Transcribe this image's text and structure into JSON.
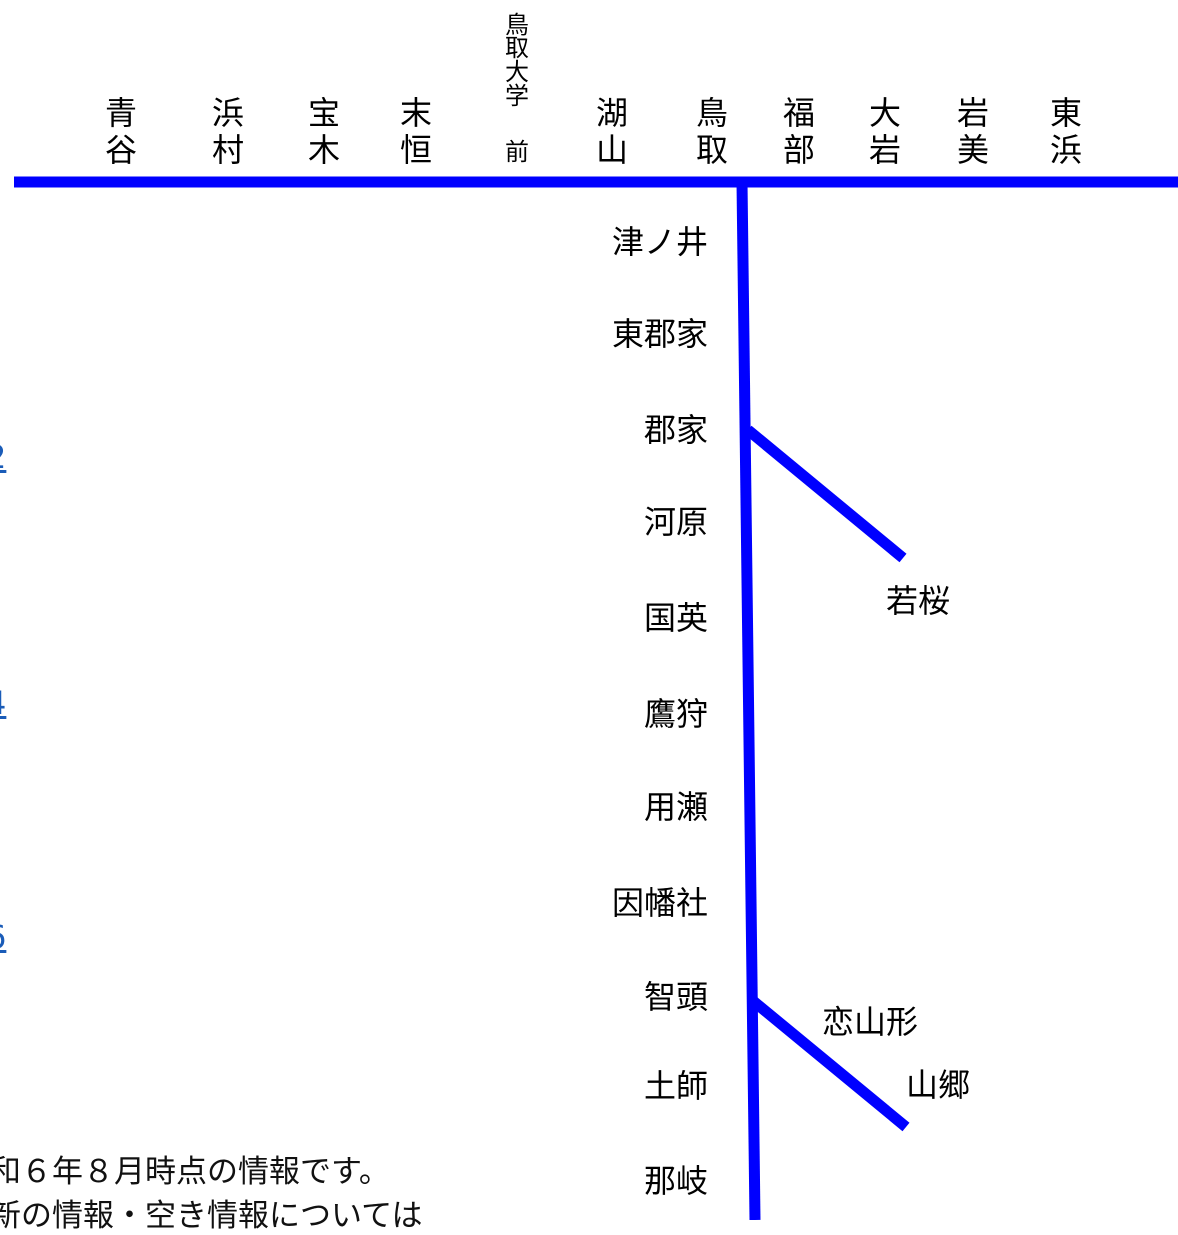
{
  "line_color": "#0000ff",
  "link_color": "#1a5cb8",
  "main_line_stations": [
    {
      "id": "aoya",
      "chars": [
        "青",
        "谷"
      ]
    },
    {
      "id": "hamamura",
      "chars": [
        "浜",
        "村"
      ]
    },
    {
      "id": "hougi",
      "chars": [
        "宝",
        "木"
      ]
    },
    {
      "id": "suetsune",
      "chars": [
        "末",
        "恒"
      ]
    },
    {
      "id": "tottori-daigaku-mae",
      "chars": [
        "鳥",
        "取",
        "大",
        "学",
        "前"
      ]
    },
    {
      "id": "koyama",
      "chars": [
        "湖",
        "山"
      ]
    },
    {
      "id": "tottori",
      "chars": [
        "鳥",
        "取"
      ]
    },
    {
      "id": "fukube",
      "chars": [
        "福",
        "部"
      ]
    },
    {
      "id": "oiwa",
      "chars": [
        "大",
        "岩"
      ]
    },
    {
      "id": "iwami",
      "chars": [
        "岩",
        "美"
      ]
    },
    {
      "id": "higashihama",
      "chars": [
        "東",
        "浜"
      ]
    }
  ],
  "branch_stations": [
    {
      "id": "tsunoi",
      "label": "津ノ井"
    },
    {
      "id": "higashi-koge",
      "label": "東郡家"
    },
    {
      "id": "koge",
      "label": "郡家"
    },
    {
      "id": "kawahara",
      "label": "河原"
    },
    {
      "id": "kokuei",
      "label": "国英"
    },
    {
      "id": "takagari",
      "label": "鷹狩"
    },
    {
      "id": "mochigase",
      "label": "用瀬"
    },
    {
      "id": "inbanosha",
      "label": "因幡社"
    },
    {
      "id": "chizu",
      "label": "智頭"
    },
    {
      "id": "hashi",
      "label": "土師"
    },
    {
      "id": "nagi",
      "label": "那岐"
    }
  ],
  "wakasa_branch": {
    "station": "若桜"
  },
  "chizu_branch": {
    "stations": [
      "恋山形",
      "山郷"
    ]
  },
  "side_links": [
    "2",
    "4",
    "6"
  ],
  "notes": {
    "line1": "和６年８月時点の情報です。",
    "line2": "新の情報・空き情報については"
  }
}
